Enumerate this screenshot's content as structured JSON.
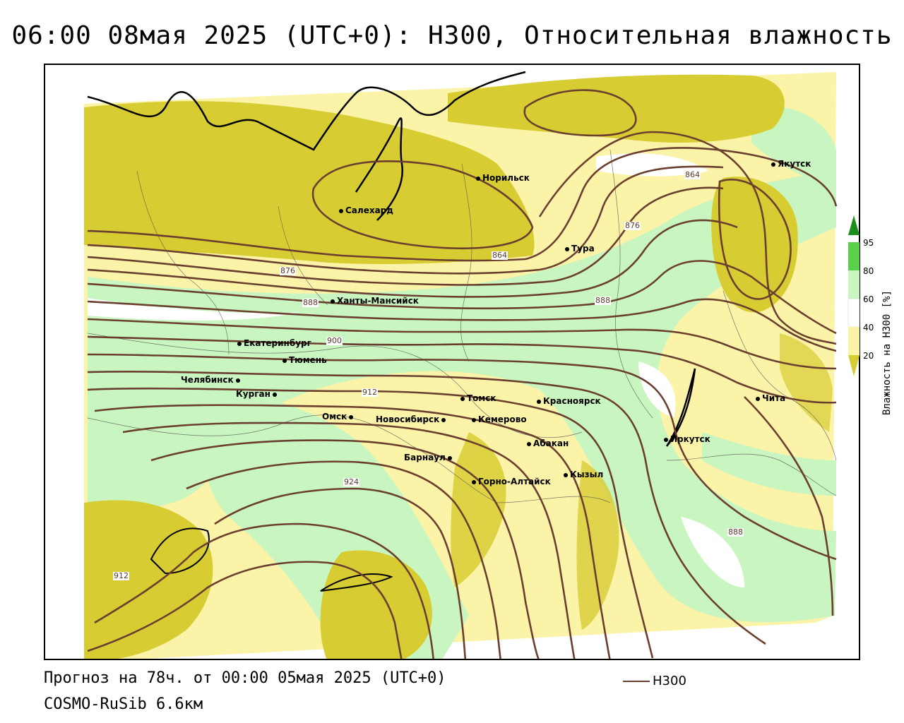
{
  "title": "06:00 08мая 2025 (UTC+0): H300, Относительная влажность",
  "colors": {
    "humidity_low": "#d8cc33",
    "humidity_mid": "#fbf3a8",
    "humidity_high": "#c8f5c0",
    "humidity_vhigh": "#58d04a",
    "humidity_max": "#1a8f1a",
    "contour": "#6b3f2f"
  },
  "cities": [
    {
      "name": "Норильск"
    },
    {
      "name": "Якутск"
    },
    {
      "name": "Салехард"
    },
    {
      "name": "Тура"
    },
    {
      "name": "Ханты-Мансийск"
    },
    {
      "name": "Екатеринбург"
    },
    {
      "name": "Тюмень"
    },
    {
      "name": "Челябинск"
    },
    {
      "name": "Курган"
    },
    {
      "name": "Томск"
    },
    {
      "name": "Красноярск"
    },
    {
      "name": "Омск"
    },
    {
      "name": "Новосибирск"
    },
    {
      "name": "Кемерово"
    },
    {
      "name": "Абакан"
    },
    {
      "name": "Барнаул"
    },
    {
      "name": "Горно-Алтайск"
    },
    {
      "name": "Кызыл"
    },
    {
      "name": "Иркутск"
    },
    {
      "name": "Чита"
    }
  ],
  "contour_labels": [
    "864",
    "876",
    "864",
    "876",
    "888",
    "888",
    "900",
    "912",
    "924",
    "888",
    "912"
  ],
  "legend": {
    "ticks": [
      "95",
      "80",
      "60",
      "40",
      "20"
    ],
    "title": "Влажность на H300 [%]"
  },
  "footer": {
    "forecast": "Прогноз на 78ч. от 00:00 05мая 2025 (UTC+0)",
    "model": "COSMO-RuSib 6.6км",
    "line_legend": "H300"
  }
}
